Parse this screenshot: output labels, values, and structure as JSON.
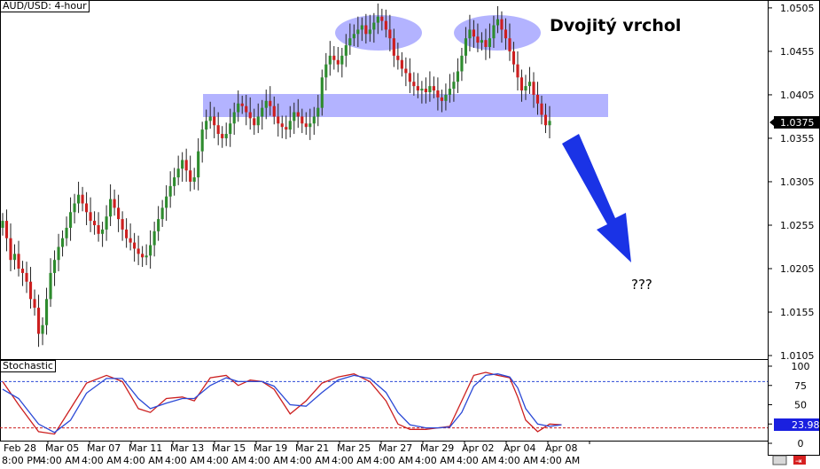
{
  "main_panel": {
    "title": "AUD/USD: 4-hour"
  },
  "stoch_panel": {
    "title": "Stochastic"
  },
  "annotations": {
    "pattern_label": "Dvojitý vrchol",
    "question": "???"
  },
  "colors": {
    "bull": "#2e8b2e",
    "bear": "#cc1f1f",
    "zone": "#9999ff",
    "arrow": "#1a33e6",
    "stoch_k": "#cc1f1f",
    "stoch_d": "#2b49d6",
    "badge_bg": "#1a20e0"
  },
  "price_badge": "1.0375",
  "stoch_badge": "23.98",
  "x_labels_top": [
    "Feb 28",
    "Mar 05",
    "Mar 07",
    "Mar 11",
    "Mar 13",
    "Mar 15",
    "Mar 19",
    "Mar 21",
    "Mar 25",
    "Mar 27",
    "Mar 29",
    "Apr 02",
    "Apr 04",
    "Apr 08"
  ],
  "x_labels_bottom": [
    "8:00 PM",
    "4:00 AM",
    "4:00 AM",
    "4:00 AM",
    "4:00 AM",
    "4:00 AM",
    "4:00 AM",
    "4:00 AM",
    "4:00 AM",
    "4:00 AM",
    "4:00 AM",
    "4:00 AM",
    "4:00 AM",
    "4:00 AM"
  ],
  "chart_data": [
    {
      "type": "candlestick",
      "title": "AUD/USD: 4-hour",
      "yticks": [
        "1.0505",
        "1.0455",
        "1.0405",
        "1.0355",
        "1.0305",
        "1.0255",
        "1.0205",
        "1.0155",
        "1.0105"
      ],
      "ylim": [
        1.0103,
        1.051
      ],
      "last_price": 1.0375,
      "series": [
        {
          "name": "AUD/USD",
          "close": [
            1.026,
            1.024,
            1.0215,
            1.0222,
            1.0205,
            1.02,
            1.019,
            1.017,
            1.016,
            1.013,
            1.014,
            1.017,
            1.02,
            1.0215,
            1.023,
            1.024,
            1.0252,
            1.027,
            1.028,
            1.029,
            1.028,
            1.027,
            1.026,
            1.0255,
            1.0245,
            1.025,
            1.0265,
            1.0285,
            1.0275,
            1.0262,
            1.025,
            1.024,
            1.0235,
            1.0228,
            1.0222,
            1.0218,
            1.022,
            1.0232,
            1.0248,
            1.0262,
            1.0275,
            1.0288,
            1.03,
            1.031,
            1.032,
            1.033,
            1.0318,
            1.0305,
            1.031,
            1.034,
            1.0365,
            1.0375,
            1.038,
            1.037,
            1.036,
            1.0355,
            1.036,
            1.0372,
            1.0385,
            1.0395,
            1.0392,
            1.0385,
            1.0378,
            1.037,
            1.038,
            1.039,
            1.0398,
            1.0392,
            1.038,
            1.0372,
            1.0368,
            1.0365,
            1.0375,
            1.0385,
            1.038,
            1.0372,
            1.0368,
            1.0372,
            1.038,
            1.039,
            1.0425,
            1.044,
            1.045,
            1.0445,
            1.044,
            1.045,
            1.0462,
            1.047,
            1.0475,
            1.048,
            1.0485,
            1.0475,
            1.048,
            1.0488,
            1.0495,
            1.049,
            1.048,
            1.047,
            1.045,
            1.0445,
            1.0435,
            1.043,
            1.042,
            1.0415,
            1.041,
            1.0412,
            1.0408,
            1.0415,
            1.041,
            1.0402,
            1.0398,
            1.0405,
            1.0412,
            1.042,
            1.0432,
            1.045,
            1.047,
            1.048,
            1.0472,
            1.0465,
            1.0468,
            1.046,
            1.047,
            1.0485,
            1.0492,
            1.048,
            1.047,
            1.0455,
            1.044,
            1.0425,
            1.041,
            1.0415,
            1.042,
            1.0405,
            1.0395,
            1.0382,
            1.037,
            1.0375
          ]
        }
      ]
    },
    {
      "type": "line",
      "title": "Stochastic",
      "yticks": [
        "100",
        "75",
        "50",
        "25",
        "0"
      ],
      "ylim": [
        0,
        100
      ],
      "levels": [
        80,
        20
      ],
      "last_value": 23.98,
      "series": [
        {
          "name": "%K",
          "points": [
            [
              0,
              80
            ],
            [
              4,
              50
            ],
            [
              9,
              15
            ],
            [
              13,
              12
            ],
            [
              17,
              45
            ],
            [
              21,
              78
            ],
            [
              26,
              88
            ],
            [
              30,
              80
            ],
            [
              34,
              45
            ],
            [
              37,
              40
            ],
            [
              41,
              58
            ],
            [
              45,
              60
            ],
            [
              48,
              55
            ],
            [
              52,
              85
            ],
            [
              56,
              88
            ],
            [
              59,
              75
            ],
            [
              62,
              82
            ],
            [
              65,
              80
            ],
            [
              68,
              70
            ],
            [
              72,
              38
            ],
            [
              76,
              55
            ],
            [
              80,
              78
            ],
            [
              84,
              86
            ],
            [
              88,
              90
            ],
            [
              92,
              80
            ],
            [
              96,
              55
            ],
            [
              99,
              25
            ],
            [
              102,
              18
            ],
            [
              106,
              18
            ],
            [
              109,
              20
            ],
            [
              112,
              22
            ],
            [
              115,
              55
            ],
            [
              118,
              88
            ],
            [
              121,
              92
            ],
            [
              124,
              88
            ],
            [
              127,
              85
            ],
            [
              129,
              60
            ],
            [
              131,
              30
            ],
            [
              134,
              15
            ],
            [
              137,
              25
            ],
            [
              140,
              24
            ]
          ]
        },
        {
          "name": "%D",
          "points": [
            [
              0,
              70
            ],
            [
              4,
              58
            ],
            [
              9,
              25
            ],
            [
              13,
              14
            ],
            [
              17,
              30
            ],
            [
              21,
              65
            ],
            [
              26,
              84
            ],
            [
              30,
              84
            ],
            [
              34,
              58
            ],
            [
              37,
              45
            ],
            [
              41,
              52
            ],
            [
              45,
              58
            ],
            [
              48,
              58
            ],
            [
              52,
              75
            ],
            [
              56,
              85
            ],
            [
              59,
              80
            ],
            [
              62,
              80
            ],
            [
              65,
              80
            ],
            [
              68,
              74
            ],
            [
              72,
              50
            ],
            [
              76,
              48
            ],
            [
              80,
              66
            ],
            [
              84,
              82
            ],
            [
              88,
              88
            ],
            [
              92,
              84
            ],
            [
              96,
              66
            ],
            [
              99,
              40
            ],
            [
              102,
              24
            ],
            [
              106,
              20
            ],
            [
              109,
              20
            ],
            [
              112,
              21
            ],
            [
              115,
              40
            ],
            [
              118,
              74
            ],
            [
              121,
              88
            ],
            [
              124,
              90
            ],
            [
              127,
              86
            ],
            [
              129,
              72
            ],
            [
              131,
              45
            ],
            [
              134,
              25
            ],
            [
              137,
              22
            ],
            [
              140,
              24
            ]
          ]
        }
      ]
    }
  ]
}
